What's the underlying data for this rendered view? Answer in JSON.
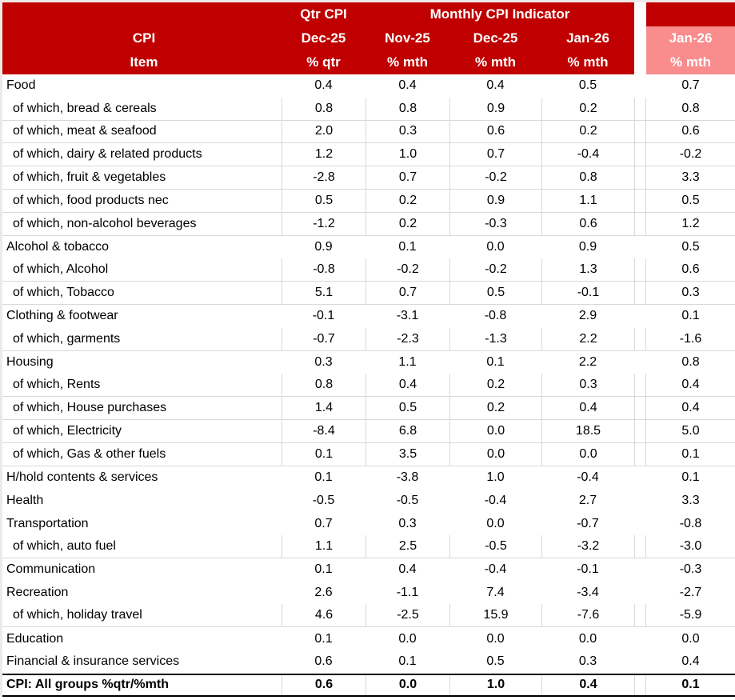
{
  "colors": {
    "header_red": "#C00000",
    "highlight_salmon": "#F98C8C",
    "category_row_pink": "#EFD5CC",
    "gridline_gray": "#D9D9D9",
    "total_border_black": "#000000",
    "text_header": "#FFFFFF",
    "text_body": "#000000"
  },
  "header": {
    "item_line1": "CPI",
    "item_line2": "Item",
    "qtr_group_label": "Qtr CPI",
    "qtr_month": "Dec-25",
    "qtr_unit": "% qtr",
    "monthly_group_label": "Monthly CPI Indicator",
    "monthly_months": [
      "Nov-25",
      "Dec-25",
      "Jan-26"
    ],
    "monthly_unit": "% mth",
    "highlight_month": "Jan-26",
    "highlight_unit": "% mth"
  },
  "chart_data": {
    "type": "table",
    "columns": [
      "CPI Item",
      "Qtr CPI Dec-25 % qtr",
      "Monthly CPI Indicator Nov-25 % mth",
      "Monthly CPI Indicator Dec-25 % mth",
      "Monthly CPI Indicator Jan-26 % mth",
      "Jan-26 % mth (highlighted)"
    ],
    "rows": [
      {
        "label": "Food",
        "type": "category",
        "values": [
          "0.4",
          "0.4",
          "0.4",
          "0.5"
        ],
        "jan26": "0.7"
      },
      {
        "label": "of which, bread & cereals",
        "type": "sub",
        "values": [
          "0.8",
          "0.8",
          "0.9",
          "0.2"
        ],
        "jan26": "0.8"
      },
      {
        "label": "of which, meat & seafood",
        "type": "sub",
        "values": [
          "2.0",
          "0.3",
          "0.6",
          "0.2"
        ],
        "jan26": "0.6"
      },
      {
        "label": "of which, dairy & related products",
        "type": "sub",
        "values": [
          "1.2",
          "1.0",
          "0.7",
          "-0.4"
        ],
        "jan26": "-0.2"
      },
      {
        "label": "of which, fruit & vegetables",
        "type": "sub",
        "values": [
          "-2.8",
          "0.7",
          "-0.2",
          "0.8"
        ],
        "jan26": "3.3"
      },
      {
        "label": "of which, food products nec",
        "type": "sub",
        "values": [
          "0.5",
          "0.2",
          "0.9",
          "1.1"
        ],
        "jan26": "0.5"
      },
      {
        "label": "of which, non-alcohol beverages",
        "type": "sub",
        "values": [
          "-1.2",
          "0.2",
          "-0.3",
          "0.6"
        ],
        "jan26": "1.2"
      },
      {
        "label": "Alcohol & tobacco",
        "type": "category",
        "values": [
          "0.9",
          "0.1",
          "0.0",
          "0.9"
        ],
        "jan26": "0.5"
      },
      {
        "label": "of which, Alcohol",
        "type": "sub",
        "values": [
          "-0.8",
          "-0.2",
          "-0.2",
          "1.3"
        ],
        "jan26": "0.6"
      },
      {
        "label": "of which, Tobacco",
        "type": "sub",
        "values": [
          "5.1",
          "0.7",
          "0.5",
          "-0.1"
        ],
        "jan26": "0.3"
      },
      {
        "label": "Clothing & footwear",
        "type": "category",
        "values": [
          "-0.1",
          "-3.1",
          "-0.8",
          "2.9"
        ],
        "jan26": "0.1"
      },
      {
        "label": "of which, garments",
        "type": "sub",
        "values": [
          "-0.7",
          "-2.3",
          "-1.3",
          "2.2"
        ],
        "jan26": "-1.6"
      },
      {
        "label": "Housing",
        "type": "category",
        "values": [
          "0.3",
          "1.1",
          "0.1",
          "2.2"
        ],
        "jan26": "0.8"
      },
      {
        "label": "of which, Rents",
        "type": "sub",
        "values": [
          "0.8",
          "0.4",
          "0.2",
          "0.3"
        ],
        "jan26": "0.4"
      },
      {
        "label": "of which, House purchases",
        "type": "sub",
        "values": [
          "1.4",
          "0.5",
          "0.2",
          "0.4"
        ],
        "jan26": "0.4"
      },
      {
        "label": "of which, Electricity",
        "type": "sub",
        "values": [
          "-8.4",
          "6.8",
          "0.0",
          "18.5"
        ],
        "jan26": "5.0"
      },
      {
        "label": "of which, Gas & other fuels",
        "type": "sub",
        "values": [
          "0.1",
          "3.5",
          "0.0",
          "0.0"
        ],
        "jan26": "0.1"
      },
      {
        "label": "H/hold contents & services",
        "type": "category",
        "values": [
          "0.1",
          "-3.8",
          "1.0",
          "-0.4"
        ],
        "jan26": "0.1"
      },
      {
        "label": "Health",
        "type": "category",
        "values": [
          "-0.5",
          "-0.5",
          "-0.4",
          "2.7"
        ],
        "jan26": "3.3"
      },
      {
        "label": "Transportation",
        "type": "category",
        "values": [
          "0.7",
          "0.3",
          "0.0",
          "-0.7"
        ],
        "jan26": "-0.8"
      },
      {
        "label": "of which, auto fuel",
        "type": "sub",
        "values": [
          "1.1",
          "2.5",
          "-0.5",
          "-3.2"
        ],
        "jan26": "-3.0"
      },
      {
        "label": "Communication",
        "type": "category",
        "values": [
          "0.1",
          "0.4",
          "-0.4",
          "-0.1"
        ],
        "jan26": "-0.3"
      },
      {
        "label": "Recreation",
        "type": "category",
        "values": [
          "2.6",
          "-1.1",
          "7.4",
          "-3.4"
        ],
        "jan26": "-2.7"
      },
      {
        "label": "of which, holiday travel",
        "type": "sub",
        "values": [
          "4.6",
          "-2.5",
          "15.9",
          "-7.6"
        ],
        "jan26": "-5.9"
      },
      {
        "label": "Education",
        "type": "category",
        "values": [
          "0.1",
          "0.0",
          "0.0",
          "0.0"
        ],
        "jan26": "0.0"
      },
      {
        "label": "Financial & insurance services",
        "type": "category",
        "values": [
          "0.6",
          "0.1",
          "0.5",
          "0.3"
        ],
        "jan26": "0.4"
      },
      {
        "label": "CPI: All groups %qtr/%mth",
        "type": "total",
        "values": [
          "0.6",
          "0.0",
          "1.0",
          "0.4"
        ],
        "jan26": "0.1"
      }
    ]
  }
}
